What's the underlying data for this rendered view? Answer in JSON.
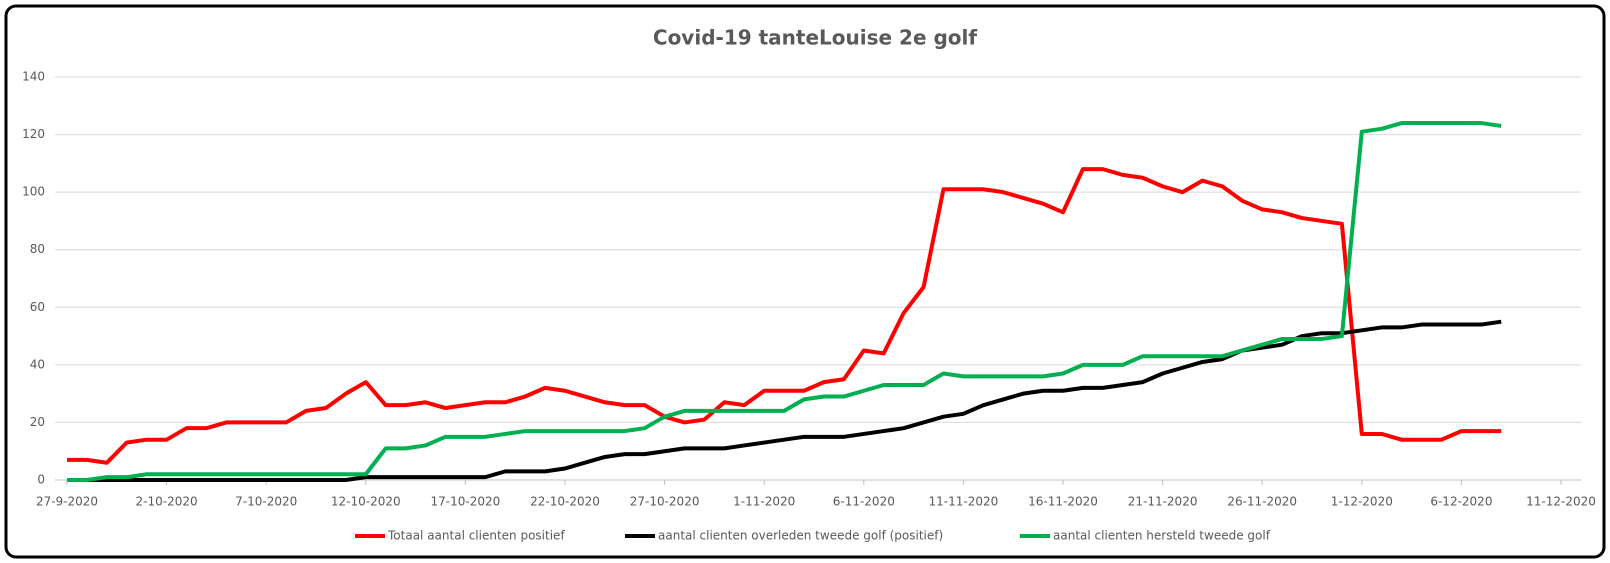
{
  "chart_data": {
    "type": "line",
    "title": "Covid-19 tanteLouise  2e golf",
    "x": [
      "27-9-2020",
      "28-9-2020",
      "29-9-2020",
      "30-9-2020",
      "1-10-2020",
      "2-10-2020",
      "3-10-2020",
      "4-10-2020",
      "5-10-2020",
      "6-10-2020",
      "7-10-2020",
      "8-10-2020",
      "9-10-2020",
      "10-10-2020",
      "11-10-2020",
      "12-10-2020",
      "13-10-2020",
      "14-10-2020",
      "15-10-2020",
      "16-10-2020",
      "17-10-2020",
      "18-10-2020",
      "19-10-2020",
      "20-10-2020",
      "21-10-2020",
      "22-10-2020",
      "23-10-2020",
      "24-10-2020",
      "25-10-2020",
      "26-10-2020",
      "27-10-2020",
      "28-10-2020",
      "29-10-2020",
      "30-10-2020",
      "31-10-2020",
      "1-11-2020",
      "2-11-2020",
      "3-11-2020",
      "4-11-2020",
      "5-11-2020",
      "6-11-2020",
      "7-11-2020",
      "8-11-2020",
      "9-11-2020",
      "10-11-2020",
      "11-11-2020",
      "12-11-2020",
      "13-11-2020",
      "14-11-2020",
      "15-11-2020",
      "16-11-2020",
      "17-11-2020",
      "18-11-2020",
      "19-11-2020",
      "20-11-2020",
      "21-11-2020",
      "22-11-2020",
      "23-11-2020",
      "24-11-2020",
      "25-11-2020",
      "26-11-2020",
      "27-11-2020",
      "28-11-2020",
      "29-11-2020",
      "30-11-2020",
      "1-12-2020",
      "2-12-2020",
      "3-12-2020",
      "4-12-2020",
      "5-12-2020",
      "6-12-2020",
      "7-12-2020",
      "8-12-2020"
    ],
    "series": [
      {
        "name": "Totaal aantal clienten positief",
        "color": "#ff0000",
        "values": [
          7,
          7,
          6,
          13,
          14,
          14,
          18,
          18,
          20,
          20,
          20,
          20,
          24,
          25,
          30,
          34,
          26,
          26,
          27,
          25,
          26,
          27,
          27,
          29,
          32,
          31,
          29,
          27,
          26,
          26,
          22,
          20,
          21,
          27,
          26,
          31,
          31,
          31,
          34,
          35,
          45,
          44,
          58,
          67,
          101,
          101,
          101,
          100,
          98,
          96,
          93,
          108,
          108,
          106,
          105,
          102,
          100,
          104,
          102,
          97,
          94,
          93,
          91,
          90,
          89,
          16,
          16,
          14,
          14,
          14,
          17,
          17,
          17
        ]
      },
      {
        "name": "aantal clienten overleden tweede golf (positief)",
        "color": "#000000",
        "values": [
          0,
          0,
          0,
          0,
          0,
          0,
          0,
          0,
          0,
          0,
          0,
          0,
          0,
          0,
          0,
          1,
          1,
          1,
          1,
          1,
          1,
          1,
          3,
          3,
          3,
          4,
          6,
          8,
          9,
          9,
          10,
          11,
          11,
          11,
          12,
          13,
          14,
          15,
          15,
          15,
          16,
          17,
          18,
          20,
          22,
          23,
          26,
          28,
          30,
          31,
          31,
          32,
          32,
          33,
          34,
          37,
          39,
          41,
          42,
          45,
          46,
          47,
          50,
          51,
          51,
          52,
          53,
          53,
          54,
          54,
          54,
          54,
          55
        ]
      },
      {
        "name": "aantal clienten hersteld tweede golf",
        "color": "#00b050",
        "values": [
          0,
          0,
          1,
          1,
          2,
          2,
          2,
          2,
          2,
          2,
          2,
          2,
          2,
          2,
          2,
          2,
          11,
          11,
          12,
          15,
          15,
          15,
          16,
          17,
          17,
          17,
          17,
          17,
          17,
          18,
          22,
          24,
          24,
          24,
          24,
          24,
          24,
          28,
          29,
          29,
          31,
          33,
          33,
          33,
          37,
          36,
          36,
          36,
          36,
          36,
          37,
          40,
          40,
          40,
          43,
          43,
          43,
          43,
          43,
          45,
          47,
          49,
          49,
          49,
          50,
          121,
          122,
          124,
          124,
          124,
          124,
          124,
          123
        ]
      }
    ],
    "xlim": [
      "27-9-2020",
      "11-12-2020"
    ],
    "xticks": [
      "27-9-2020",
      "2-10-2020",
      "7-10-2020",
      "12-10-2020",
      "17-10-2020",
      "22-10-2020",
      "27-10-2020",
      "1-11-2020",
      "6-11-2020",
      "11-11-2020",
      "16-11-2020",
      "21-11-2020",
      "26-11-2020",
      "1-12-2020",
      "6-12-2020",
      "11-12-2020"
    ],
    "ylim": [
      0,
      140
    ],
    "yticks": [
      0,
      20,
      40,
      60,
      80,
      100,
      120,
      140
    ],
    "grid": true,
    "legend": "bottom"
  }
}
